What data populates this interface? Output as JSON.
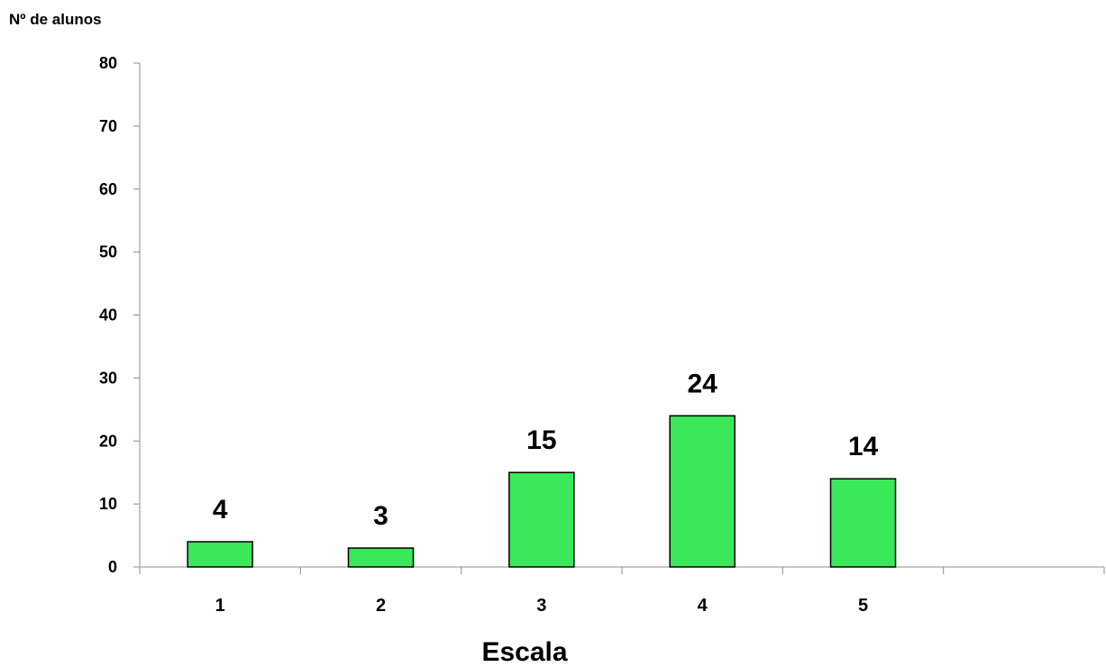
{
  "chart_data": {
    "type": "bar",
    "categories": [
      "1",
      "2",
      "3",
      "4",
      "5",
      ""
    ],
    "values": [
      4,
      3,
      15,
      24,
      14,
      null
    ],
    "data_labels": [
      "4",
      "3",
      "15",
      "24",
      "14",
      ""
    ],
    "xlabel": "Escala",
    "ylabel": "Nº de alunos",
    "ylim": [
      0,
      80
    ],
    "yticks": [
      0,
      10,
      20,
      30,
      40,
      50,
      60,
      70,
      80
    ],
    "grid": false,
    "legend": "none",
    "bar_color": "#3ae85a",
    "bar_edge_color": "#000000"
  }
}
